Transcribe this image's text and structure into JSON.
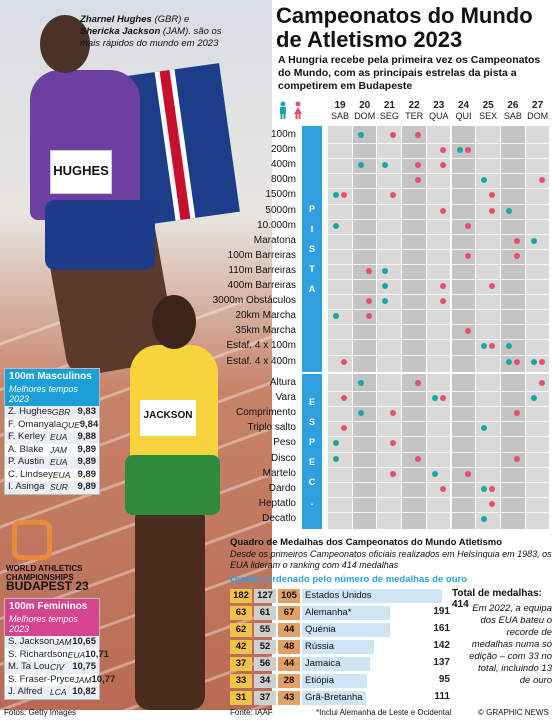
{
  "title": "Campeonatos do Mundo de Atletismo 2023",
  "subtitle": "A Hungria recebe pela primeira vez os Campeonatos do Mundo, com as principais estrelas da pista a competirem em Budapeste",
  "caption": {
    "name1": "Zharnel Hughes",
    "c1": "(GBR)",
    "and": "e",
    "name2": "Shericka Jackson",
    "c2": "(JAM).",
    "rest": "são os mais rápidos do mundo em 2023"
  },
  "bibs": {
    "b1": "HUGHES",
    "b2": "JACKSON"
  },
  "colors": {
    "male": "#1aa6a6",
    "female": "#e8506a",
    "band": "#2f9fe0",
    "gold": "#f0c24a",
    "silver": "#cfcfcf",
    "bronze": "#e2a065"
  },
  "days": [
    {
      "n": "19",
      "d": "SAB"
    },
    {
      "n": "20",
      "d": "DOM"
    },
    {
      "n": "21",
      "d": "SEG"
    },
    {
      "n": "22",
      "d": "TER"
    },
    {
      "n": "23",
      "d": "QUA"
    },
    {
      "n": "24",
      "d": "QUI"
    },
    {
      "n": "25",
      "d": "SEX"
    },
    {
      "n": "26",
      "d": "SAB"
    },
    {
      "n": "27",
      "d": "DOM"
    }
  ],
  "pista_label": "P I S T A",
  "espec_label": "E S P E C .",
  "pista_events": [
    {
      "name": "100m",
      "m": [
        1
      ],
      "f": [
        2,
        3
      ]
    },
    {
      "name": "200m",
      "m": [
        5
      ],
      "f": [
        4,
        5
      ]
    },
    {
      "name": "400m",
      "m": [
        1,
        2
      ],
      "f": [
        3,
        4
      ]
    },
    {
      "name": "800m",
      "m": [
        6
      ],
      "f": [
        3,
        8
      ]
    },
    {
      "name": "1500m",
      "m": [
        0
      ],
      "f": [
        0,
        2,
        6
      ]
    },
    {
      "name": "5000m",
      "m": [
        7
      ],
      "f": [
        4,
        6
      ]
    },
    {
      "name": "10.000m",
      "m": [
        0
      ],
      "f": [
        5
      ]
    },
    {
      "name": "Maratona",
      "m": [
        8
      ],
      "f": [
        7
      ]
    },
    {
      "name": "100m Barreiras",
      "m": [],
      "f": [
        5,
        7
      ]
    },
    {
      "name": "110m Barreiras",
      "m": [
        2
      ],
      "f": [
        1
      ]
    },
    {
      "name": "400m Barreiras",
      "m": [
        2
      ],
      "f": [
        4,
        6
      ]
    },
    {
      "name": "3000m Obstáculos",
      "m": [
        2
      ],
      "f": [
        1,
        4
      ]
    },
    {
      "name": "20km Marcha",
      "m": [
        0
      ],
      "f": [
        1
      ]
    },
    {
      "name": "35km Marcha",
      "m": [],
      "f": [
        5
      ]
    },
    {
      "name": "Estaf. 4 x 100m",
      "m": [
        6,
        7
      ],
      "f": [
        6
      ]
    },
    {
      "name": "Estaf. 4 x 400m",
      "m": [
        7,
        8
      ],
      "f": [
        0,
        7,
        8
      ]
    }
  ],
  "espec_events": [
    {
      "name": "Altura",
      "m": [
        1
      ],
      "f": [
        3,
        8
      ]
    },
    {
      "name": "Vara",
      "m": [
        4,
        8
      ],
      "f": [
        0,
        4
      ]
    },
    {
      "name": "Comprimento",
      "m": [
        1
      ],
      "f": [
        2,
        7
      ]
    },
    {
      "name": "Triplo salto",
      "m": [
        6
      ],
      "f": [
        0
      ]
    },
    {
      "name": "Peso",
      "m": [
        0
      ],
      "f": [
        2
      ]
    },
    {
      "name": "Disco",
      "m": [
        0
      ],
      "f": [
        3,
        7
      ]
    },
    {
      "name": "Martelo",
      "m": [
        4
      ],
      "f": [
        2,
        5
      ]
    },
    {
      "name": "Dardo",
      "m": [
        6
      ],
      "f": [
        4,
        6
      ]
    },
    {
      "name": "Heptatlo",
      "m": [],
      "f": [
        6
      ]
    },
    {
      "name": "Decatlo",
      "m": [
        6
      ],
      "f": []
    }
  ],
  "men_table": {
    "title": "100m Masculinos",
    "sub": "Melhores tempos 2023",
    "rows": [
      {
        "n": "Z. Hughes",
        "c": "GBR",
        "t": "9,83"
      },
      {
        "n": "F. Omanyala",
        "c": "QUE",
        "t": "9,84"
      },
      {
        "n": "F. Kerley",
        "c": "EUA",
        "t": "9,88"
      },
      {
        "n": "A. Blake",
        "c": "JAM",
        "t": "9,89"
      },
      {
        "n": "P. Austin",
        "c": "EUA",
        "t": "9,89"
      },
      {
        "n": "C. Lindsey",
        "c": "EUA",
        "t": "9,89"
      },
      {
        "n": "I. Asinga",
        "c": "SUR",
        "t": "9,89"
      }
    ]
  },
  "women_table": {
    "title": "100m Femininos",
    "sub": "Melhores tempos 2023",
    "rows": [
      {
        "n": "S. Jackson",
        "c": "JAM",
        "t": "10,65"
      },
      {
        "n": "S. Richardson",
        "c": "EUA",
        "t": "10,71"
      },
      {
        "n": "M. Ta Lou",
        "c": "CIV",
        "t": "10,75"
      },
      {
        "n": "S. Fraser-Pryce",
        "c": "JAM",
        "t": "10,77"
      },
      {
        "n": "J. Alfred",
        "c": "LCA",
        "t": "10,82"
      }
    ]
  },
  "logo": {
    "l1": "WORLD ATHLETICS",
    "l2": "CHAMPIONSHIPS",
    "l3": "BUDAPEST 23"
  },
  "medals": {
    "title": "Quadro de Medalhas dos Campeonatos do Mundo Atletismo",
    "sub": "Desde os primeiros Campeonatos oficiais realizados em Helsínquia em 1983, os EUA lideram o ranking com 414 medalhas",
    "note": "Quadro ordenado pelo número de medalhas de ouro",
    "total_label": "Total de medalhas: 414",
    "side_note": "Em 2022, a equipa dos EUA bateu o recorde de medalhas numa só edição – com 33 no total, incluindo 13 de ouro",
    "rows": [
      {
        "g": "182",
        "s": "127",
        "b": "105",
        "c": "Estados Unidos",
        "t": ""
      },
      {
        "g": "63",
        "s": "61",
        "b": "67",
        "c": "Alemanha*",
        "t": "191"
      },
      {
        "g": "62",
        "s": "55",
        "b": "44",
        "c": "Quénia",
        "t": "161"
      },
      {
        "g": "42",
        "s": "52",
        "b": "48",
        "c": "Rússia",
        "t": "142"
      },
      {
        "g": "37",
        "s": "56",
        "b": "44",
        "c": "Jamaica",
        "t": "137"
      },
      {
        "g": "33",
        "s": "34",
        "b": "28",
        "c": "Etiópia",
        "t": "95"
      },
      {
        "g": "31",
        "s": "37",
        "b": "43",
        "c": "Grã-Bretanha",
        "t": "111"
      }
    ]
  },
  "footer": {
    "photos": "Fotos: Getty Images",
    "source": "Fonte: IAAF",
    "note": "*Inclui Alemanha de Leste e Ocidental",
    "credit": "© GRAPHIC NEWS"
  }
}
